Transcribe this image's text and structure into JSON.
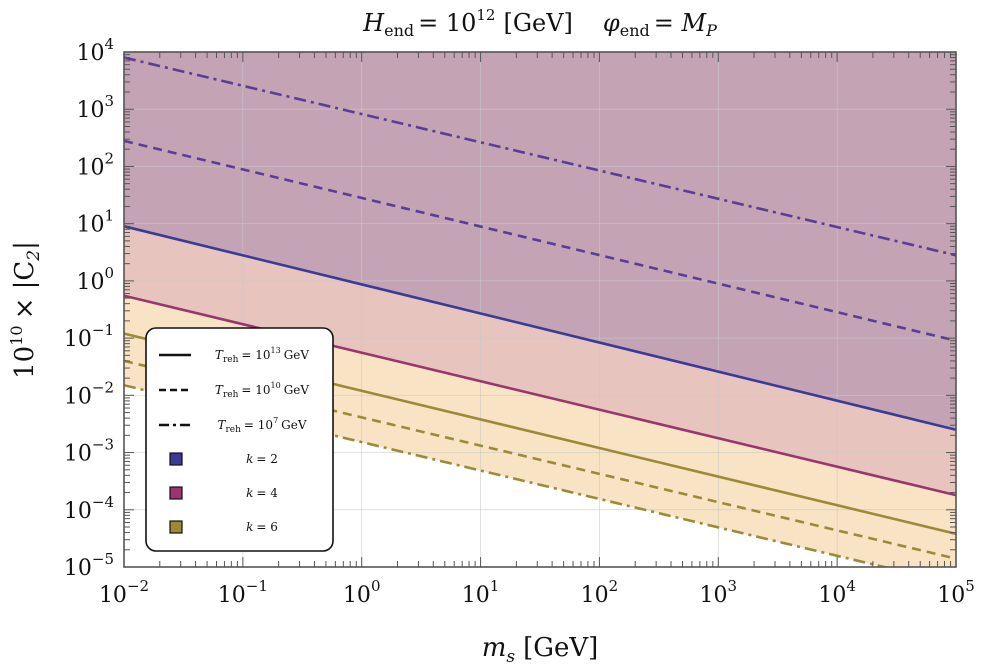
{
  "chart_data": {
    "type": "line",
    "title": "H_end = 10^12 [GeV]    φ_end = M_P",
    "title_parts": {
      "left_sym": "H",
      "left_sub": "end",
      "left_rhs": "= 10",
      "left_exp": "12",
      "left_unit": "[GeV]",
      "right_sym": "φ",
      "right_sub": "end",
      "right_rhs": "= M",
      "right_rhs_sub": "P"
    },
    "xlabel": "m_s [GeV]",
    "xlabel_parts": {
      "sym": "m",
      "sub": "s",
      "unit": "[GeV]"
    },
    "ylabel": "10^10 × |C_2|",
    "ylabel_parts": {
      "base": "10",
      "exp": "10",
      "rest": "× |C",
      "sub": "2",
      "close": "|"
    },
    "x_scale": "log",
    "y_scale": "log",
    "xlim": [
      0.01,
      100000
    ],
    "ylim": [
      1e-05,
      10000
    ],
    "grid": true,
    "x_ticks": [
      {
        "value": 0.01,
        "base": "10",
        "exp": "−2"
      },
      {
        "value": 0.1,
        "base": "10",
        "exp": "−1"
      },
      {
        "value": 1,
        "base": "10",
        "exp": "0"
      },
      {
        "value": 10,
        "base": "10",
        "exp": "1"
      },
      {
        "value": 100,
        "base": "10",
        "exp": "2"
      },
      {
        "value": 1000,
        "base": "10",
        "exp": "3"
      },
      {
        "value": 10000,
        "base": "10",
        "exp": "4"
      },
      {
        "value": 100000,
        "base": "10",
        "exp": "5"
      }
    ],
    "y_ticks": [
      {
        "value": 1e-05,
        "base": "10",
        "exp": "−5"
      },
      {
        "value": 0.0001,
        "base": "10",
        "exp": "−4"
      },
      {
        "value": 0.001,
        "base": "10",
        "exp": "−3"
      },
      {
        "value": 0.01,
        "base": "10",
        "exp": "−2"
      },
      {
        "value": 0.1,
        "base": "10",
        "exp": "−1"
      },
      {
        "value": 1,
        "base": "10",
        "exp": "0"
      },
      {
        "value": 10,
        "base": "10",
        "exp": "1"
      },
      {
        "value": 100,
        "base": "10",
        "exp": "2"
      },
      {
        "value": 1000,
        "base": "10",
        "exp": "3"
      },
      {
        "value": 10000,
        "base": "10",
        "exp": "4"
      }
    ],
    "regions": [
      {
        "k": "6",
        "color": "#f8e4c4",
        "lower_series": "k6-Treh1e7"
      },
      {
        "k": "4",
        "color": "#e8c4be",
        "lower_series": "k4-Treh1e13"
      },
      {
        "k": "2",
        "color": "#c4a4b4",
        "lower_series": "k2-Treh1e13"
      }
    ],
    "series": [
      {
        "id": "k2-Treh1e13",
        "k": "2",
        "style": "solid",
        "color": "#3a3a98",
        "x": [
          0.01,
          100000
        ],
        "y": [
          9,
          0.0025
        ]
      },
      {
        "id": "k2-Treh1e10",
        "k": "2",
        "style": "dashed",
        "color": "#5a3d98",
        "x": [
          0.01,
          100000
        ],
        "y": [
          280,
          0.09
        ]
      },
      {
        "id": "k2-Treh1e7",
        "k": "2",
        "style": "dashdot",
        "color": "#5a3d98",
        "x": [
          0.01,
          100000
        ],
        "y": [
          8000,
          2.8
        ]
      },
      {
        "id": "k4-Treh1e13",
        "k": "4",
        "style": "solid",
        "color": "#9c356e",
        "x": [
          0.01,
          100000
        ],
        "y": [
          0.55,
          0.00018
        ]
      },
      {
        "id": "k6-Treh1e13",
        "k": "6",
        "style": "solid",
        "color": "#9c8a38",
        "x": [
          0.01,
          100000
        ],
        "y": [
          0.12,
          3.8e-05
        ]
      },
      {
        "id": "k6-Treh1e10",
        "k": "6",
        "style": "dashed",
        "color": "#9c8a38",
        "x": [
          0.01,
          100000
        ],
        "y": [
          0.04,
          1.4e-05
        ]
      },
      {
        "id": "k6-Treh1e7",
        "k": "6",
        "style": "dashdot",
        "color": "#9c8a38",
        "x": [
          0.01,
          100000
        ],
        "y": [
          0.015,
          5e-06
        ]
      }
    ],
    "legend": {
      "placement": "bottom-left",
      "line_entries": [
        {
          "style": "solid",
          "label": "T_reh = 10^13 GeV",
          "sym": "T",
          "sub": "reh",
          "rhs": "= 10",
          "exp": "13",
          "unit": "GeV"
        },
        {
          "style": "dashed",
          "label": "T_reh = 10^10 GeV",
          "sym": "T",
          "sub": "reh",
          "rhs": "= 10",
          "exp": "10",
          "unit": "GeV"
        },
        {
          "style": "dashdot",
          "label": "T_reh = 10^7 GeV",
          "sym": "T",
          "sub": "reh",
          "rhs": "= 10",
          "exp": "7",
          "unit": "GeV"
        }
      ],
      "color_entries": [
        {
          "label": "k = 2",
          "sym": "k",
          "rhs": "= 2",
          "color": "#3a3a98"
        },
        {
          "label": "k = 4",
          "sym": "k",
          "rhs": "= 4",
          "color": "#9c356e"
        },
        {
          "label": "k = 6",
          "sym": "k",
          "rhs": "= 6",
          "color": "#9c8a38"
        }
      ]
    }
  }
}
